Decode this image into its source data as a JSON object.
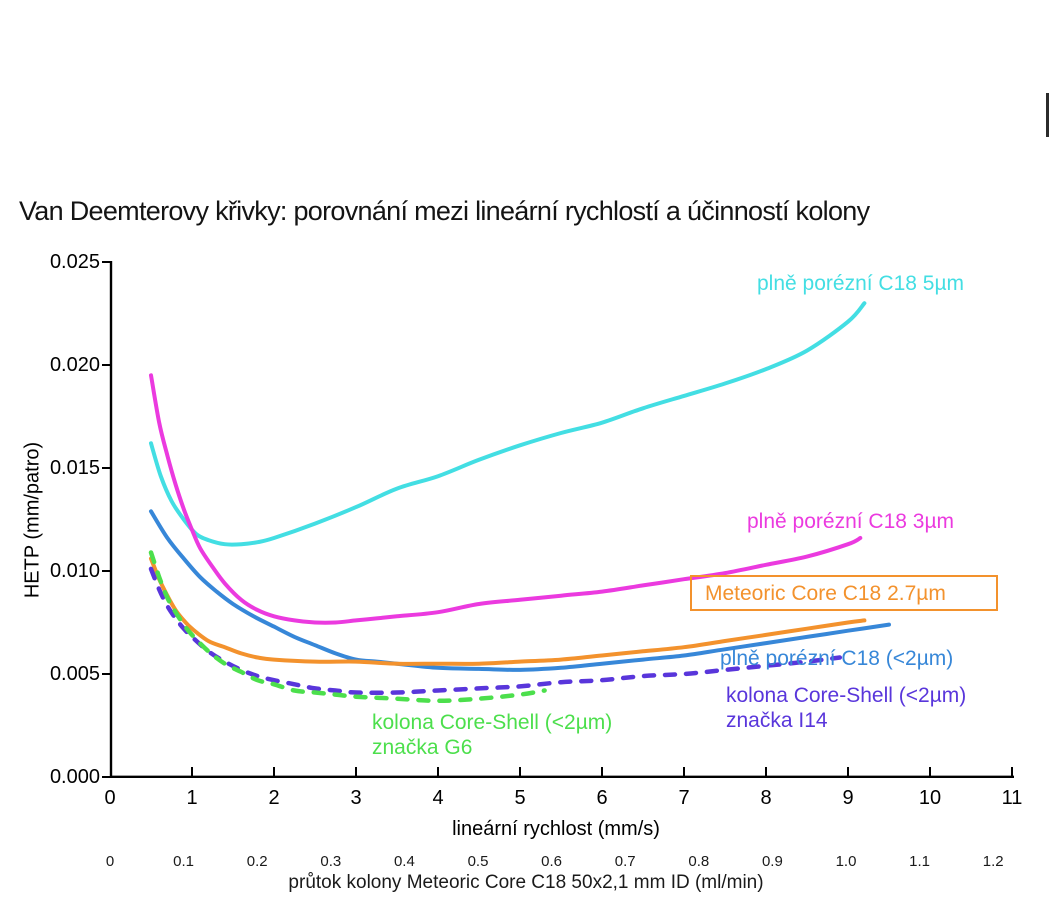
{
  "chart_data": {
    "type": "line",
    "title": "Van Deemterovy křivky: porovnání mezi lineární rychlostí a účinností kolony",
    "grid": false,
    "legend_position": "inline-labels-near-curves",
    "x_axis": {
      "label": "lineární rychlost (mm/s)",
      "min": 0,
      "max": 11,
      "ticks": [
        "0",
        "1",
        "2",
        "3",
        "4",
        "5",
        "6",
        "7",
        "8",
        "9",
        "10",
        "11"
      ]
    },
    "x_axis_secondary": {
      "label": "průtok kolony Meteoric Core C18 50x2,1 mm ID (ml/min)",
      "min": 0,
      "max": 1.2,
      "ticks": [
        "0",
        "0.1",
        "0.2",
        "0.3",
        "0.4",
        "0.5",
        "0.6",
        "0.7",
        "0.8",
        "0.9",
        "1.0",
        "1.1",
        "1.2"
      ]
    },
    "y_axis": {
      "label": "HETP (mm/patro)",
      "min": 0,
      "max": 0.025,
      "ticks": [
        "0.000",
        "0.005",
        "0.010",
        "0.015",
        "0.020",
        "0.025"
      ]
    },
    "series": [
      {
        "name": "plně porézní C18 5µm",
        "label_lines": [
          "plně porézní C18 5µm"
        ],
        "color": "#43DEE3",
        "line_style": "solid",
        "points": [
          [
            0.5,
            0.0162
          ],
          [
            0.62,
            0.0146
          ],
          [
            0.75,
            0.0134
          ],
          [
            0.9,
            0.0125
          ],
          [
            1.05,
            0.0118
          ],
          [
            1.2,
            0.0115
          ],
          [
            1.4,
            0.0113
          ],
          [
            1.6,
            0.0113
          ],
          [
            1.8,
            0.0114
          ],
          [
            2.0,
            0.0116
          ],
          [
            2.5,
            0.0123
          ],
          [
            3.0,
            0.0131
          ],
          [
            3.5,
            0.014
          ],
          [
            4.0,
            0.0146
          ],
          [
            4.5,
            0.0154
          ],
          [
            5.0,
            0.0161
          ],
          [
            5.5,
            0.0167
          ],
          [
            6.0,
            0.0172
          ],
          [
            6.5,
            0.0179
          ],
          [
            7.0,
            0.0185
          ],
          [
            7.5,
            0.0191
          ],
          [
            8.0,
            0.0198
          ],
          [
            8.5,
            0.0207
          ],
          [
            9.0,
            0.0221
          ],
          [
            9.2,
            0.023
          ]
        ]
      },
      {
        "name": "plně porézní C18 3µm",
        "label_lines": [
          "plně porézní C18 3µm"
        ],
        "color": "#EB3ADF",
        "line_style": "solid",
        "points": [
          [
            0.5,
            0.0195
          ],
          [
            0.6,
            0.0172
          ],
          [
            0.7,
            0.0156
          ],
          [
            0.8,
            0.0142
          ],
          [
            0.9,
            0.013
          ],
          [
            1.0,
            0.012
          ],
          [
            1.1,
            0.0111
          ],
          [
            1.25,
            0.0102
          ],
          [
            1.4,
            0.0094
          ],
          [
            1.6,
            0.0086
          ],
          [
            1.8,
            0.0081
          ],
          [
            2.0,
            0.0078
          ],
          [
            2.25,
            0.0076
          ],
          [
            2.5,
            0.0075
          ],
          [
            2.75,
            0.0075
          ],
          [
            3.0,
            0.0076
          ],
          [
            3.25,
            0.0077
          ],
          [
            3.5,
            0.0078
          ],
          [
            4.0,
            0.008
          ],
          [
            4.5,
            0.0084
          ],
          [
            5.0,
            0.0086
          ],
          [
            5.5,
            0.0088
          ],
          [
            6.0,
            0.009
          ],
          [
            6.5,
            0.0093
          ],
          [
            7.0,
            0.0096
          ],
          [
            7.5,
            0.0099
          ],
          [
            8.0,
            0.0103
          ],
          [
            8.5,
            0.0107
          ],
          [
            9.0,
            0.0113
          ],
          [
            9.15,
            0.0116
          ]
        ]
      },
      {
        "name": "plně porézní C18 (<2µm)",
        "label_lines": [
          "plně porézní C18 (<2µm)"
        ],
        "color": "#3787D8",
        "line_style": "solid",
        "points": [
          [
            0.5,
            0.0129
          ],
          [
            0.7,
            0.0116
          ],
          [
            0.9,
            0.0106
          ],
          [
            1.1,
            0.0097
          ],
          [
            1.3,
            0.009
          ],
          [
            1.5,
            0.0084
          ],
          [
            1.75,
            0.0078
          ],
          [
            2.0,
            0.0073
          ],
          [
            2.25,
            0.0068
          ],
          [
            2.5,
            0.0064
          ],
          [
            2.75,
            0.006
          ],
          [
            3.0,
            0.0057
          ],
          [
            3.25,
            0.0056
          ],
          [
            3.5,
            0.0055
          ],
          [
            4.0,
            0.0053
          ],
          [
            4.5,
            0.00525
          ],
          [
            5.0,
            0.0052
          ],
          [
            5.5,
            0.0053
          ],
          [
            6.0,
            0.0055
          ],
          [
            6.5,
            0.0057
          ],
          [
            7.0,
            0.0059
          ],
          [
            7.5,
            0.0062
          ],
          [
            8.0,
            0.0065
          ],
          [
            8.5,
            0.0068
          ],
          [
            9.0,
            0.0071
          ],
          [
            9.5,
            0.0074
          ]
        ]
      },
      {
        "name": "Meteoric Core C18 2.7µm",
        "label_lines": [
          "Meteoric Core C18 2.7µm"
        ],
        "color": "#F3922D",
        "line_style": "solid",
        "boxed_label": true,
        "points": [
          [
            0.5,
            0.0106
          ],
          [
            0.6,
            0.0096
          ],
          [
            0.7,
            0.0088
          ],
          [
            0.8,
            0.0081
          ],
          [
            0.9,
            0.0076
          ],
          [
            1.0,
            0.0072
          ],
          [
            1.2,
            0.0066
          ],
          [
            1.4,
            0.0063
          ],
          [
            1.6,
            0.006
          ],
          [
            1.8,
            0.0058
          ],
          [
            2.0,
            0.0057
          ],
          [
            2.5,
            0.0056
          ],
          [
            3.0,
            0.0056
          ],
          [
            3.5,
            0.0055
          ],
          [
            4.0,
            0.0055
          ],
          [
            4.5,
            0.0055
          ],
          [
            5.0,
            0.0056
          ],
          [
            5.5,
            0.0057
          ],
          [
            6.0,
            0.0059
          ],
          [
            6.5,
            0.0061
          ],
          [
            7.0,
            0.0063
          ],
          [
            7.5,
            0.0066
          ],
          [
            8.0,
            0.0069
          ],
          [
            8.5,
            0.0072
          ],
          [
            9.0,
            0.0075
          ],
          [
            9.2,
            0.0076
          ]
        ]
      },
      {
        "name": "kolona Core-Shell (<2µm) značka I14",
        "label_lines": [
          "kolona Core-Shell (<2µm)",
          "značka I14"
        ],
        "color": "#5936DB",
        "line_style": "dashed",
        "points": [
          [
            0.5,
            0.0101
          ],
          [
            0.6,
            0.0091
          ],
          [
            0.7,
            0.0083
          ],
          [
            0.8,
            0.0077
          ],
          [
            0.9,
            0.0072
          ],
          [
            1.0,
            0.0068
          ],
          [
            1.2,
            0.0061
          ],
          [
            1.4,
            0.0056
          ],
          [
            1.6,
            0.0052
          ],
          [
            1.8,
            0.0049
          ],
          [
            2.0,
            0.0047
          ],
          [
            2.25,
            0.0045
          ],
          [
            2.5,
            0.0043
          ],
          [
            2.75,
            0.0042
          ],
          [
            3.0,
            0.0041
          ],
          [
            3.5,
            0.0041
          ],
          [
            4.0,
            0.0042
          ],
          [
            4.5,
            0.0043
          ],
          [
            5.0,
            0.0044
          ],
          [
            5.5,
            0.0046
          ],
          [
            6.0,
            0.0047
          ],
          [
            6.5,
            0.0049
          ],
          [
            7.0,
            0.005
          ],
          [
            7.5,
            0.0052
          ],
          [
            8.0,
            0.0054
          ],
          [
            8.5,
            0.0056
          ],
          [
            8.9,
            0.0058
          ]
        ]
      },
      {
        "name": "kolona Core-Shell (<2µm) značka G6",
        "label_lines": [
          "kolona Core-Shell (<2µm)",
          "značka G6"
        ],
        "color": "#4CDF4C",
        "line_style": "dashed",
        "points": [
          [
            0.5,
            0.0109
          ],
          [
            0.6,
            0.0097
          ],
          [
            0.7,
            0.0087
          ],
          [
            0.8,
            0.008
          ],
          [
            0.9,
            0.0074
          ],
          [
            1.0,
            0.0069
          ],
          [
            1.2,
            0.0061
          ],
          [
            1.4,
            0.0055
          ],
          [
            1.6,
            0.0051
          ],
          [
            1.8,
            0.0047
          ],
          [
            2.0,
            0.0045
          ],
          [
            2.25,
            0.0042
          ],
          [
            2.5,
            0.0041
          ],
          [
            2.75,
            0.004
          ],
          [
            3.0,
            0.0039
          ],
          [
            3.5,
            0.0038
          ],
          [
            4.0,
            0.0037
          ],
          [
            4.5,
            0.0038
          ],
          [
            5.0,
            0.004
          ],
          [
            5.3,
            0.0042
          ]
        ]
      }
    ]
  }
}
